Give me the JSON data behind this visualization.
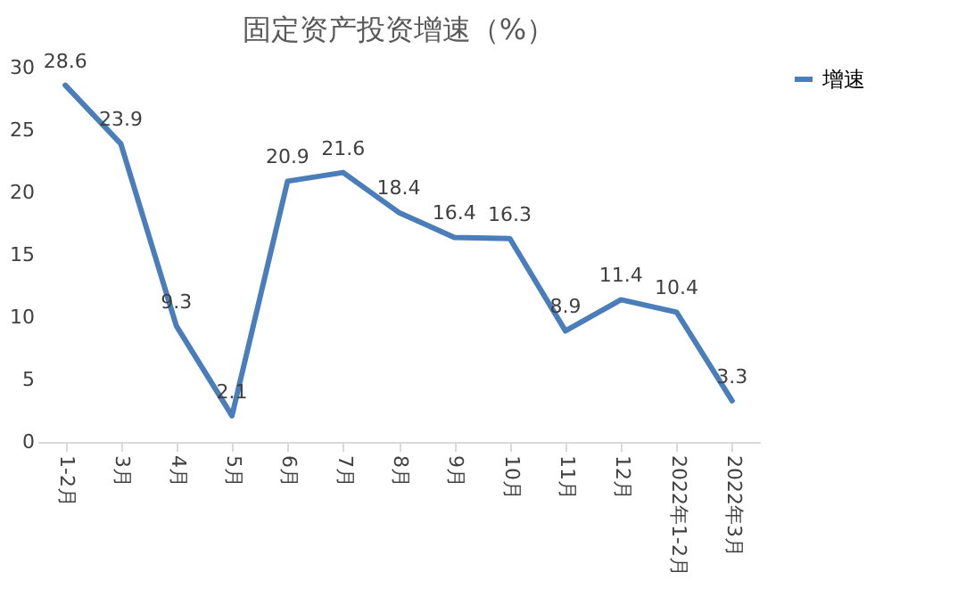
{
  "chart_data": {
    "type": "line",
    "title": "固定资产投资增速（%）",
    "categories": [
      "1-2月",
      "3月",
      "4月",
      "5月",
      "6月",
      "7月",
      "8月",
      "9月",
      "10月",
      "11月",
      "12月",
      "2022年1-2月",
      "2022年3月"
    ],
    "series": [
      {
        "name": "增速",
        "color": "#4a7ebb",
        "values": [
          28.6,
          23.9,
          9.3,
          2.1,
          20.9,
          21.6,
          18.4,
          16.4,
          16.3,
          8.9,
          11.4,
          10.4,
          3.3
        ]
      }
    ],
    "ylim": [
      0,
      30
    ],
    "yticks": [
      0,
      5,
      10,
      15,
      20,
      25,
      30
    ],
    "grid": false,
    "legend": "right",
    "data_labels": true,
    "marker": "none",
    "line_style": "solid"
  }
}
